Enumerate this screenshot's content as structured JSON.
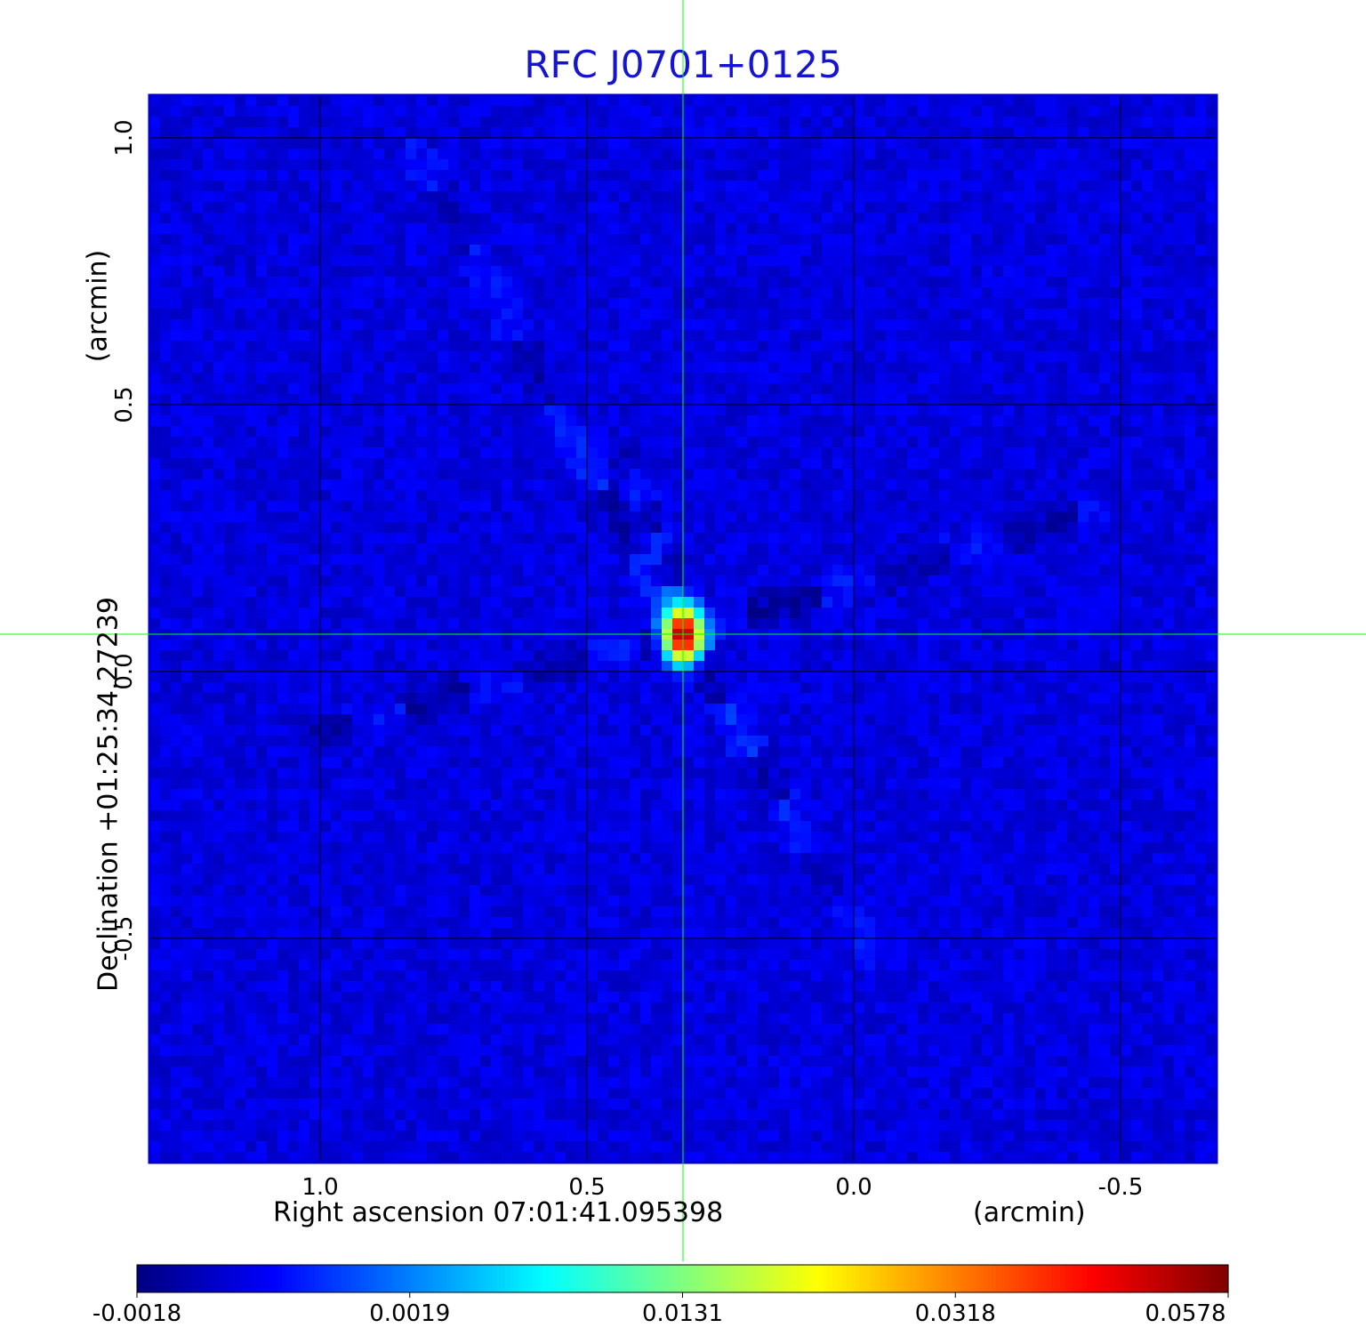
{
  "chart_data": {
    "type": "heatmap",
    "title": "RFC J0701+0125",
    "xlabel": "Right ascension  07:01:41.095398",
    "xlabel_unit": "(arcmin)",
    "ylabel": "Declination  +01:25:34.27239",
    "ylabel_unit": "(arcmin)",
    "x_ticks": [
      "1.0",
      "0.5",
      "0.0",
      "-0.5"
    ],
    "x_tick_values": [
      1.0,
      0.5,
      0.0,
      -0.5
    ],
    "y_ticks": [
      "1.0",
      "0.5",
      "0.0",
      "-0.5"
    ],
    "y_tick_values": [
      1.0,
      0.5,
      0.0,
      -0.5
    ],
    "xlim": [
      1.32,
      -0.68
    ],
    "ylim": [
      -0.92,
      1.08
    ],
    "grid": true,
    "crosshair": {
      "x": 0.32,
      "y": 0.07
    },
    "colorbar": {
      "colormap": "jet",
      "tick_labels": [
        "-0.0018",
        "0.0019",
        "0.0131",
        "0.0318",
        "0.0578"
      ],
      "placement": "bottom"
    },
    "peak": {
      "x": 0.32,
      "y": 0.07,
      "value": 0.0578
    },
    "background_value": -0.0004,
    "features": [
      {
        "from": [
          0.32,
          0.07
        ],
        "to": [
          0.82,
          0.97
        ]
      },
      {
        "from": [
          0.32,
          0.07
        ],
        "to": [
          1.03,
          -0.12
        ]
      },
      {
        "from": [
          0.32,
          0.07
        ],
        "to": [
          -0.03,
          -0.52
        ]
      },
      {
        "from": [
          0.32,
          0.07
        ],
        "to": [
          -0.45,
          0.3
        ]
      },
      {
        "from": [
          0.32,
          0.07
        ],
        "to": [
          0.42,
          0.4
        ]
      }
    ]
  },
  "colors": {
    "title": "#1414d2",
    "grid": "#000000",
    "crosshair": "#00ff00",
    "frame": "#0000cc"
  }
}
